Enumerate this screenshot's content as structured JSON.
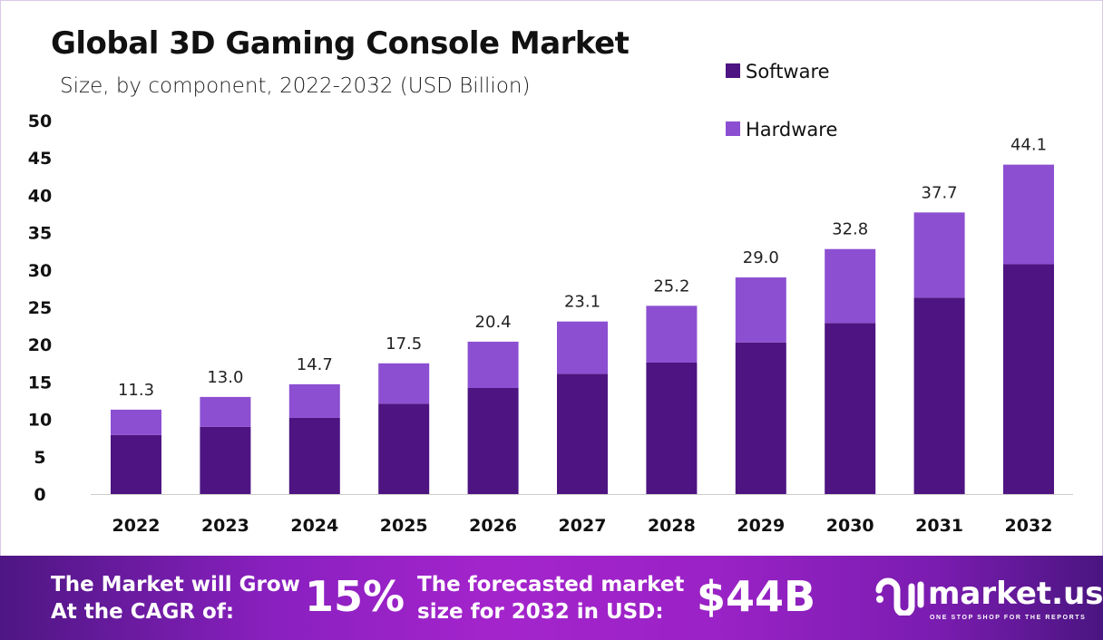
{
  "chart_data": {
    "type": "bar",
    "stacked": true,
    "title": "Global 3D Gaming Console Market",
    "subtitle": "Size, by component, 2022-2032 (USD Billion)",
    "categories": [
      "2022",
      "2023",
      "2024",
      "2025",
      "2026",
      "2027",
      "2028",
      "2029",
      "2030",
      "2031",
      "2032"
    ],
    "series": [
      {
        "name": "Software",
        "color": "#4d1482",
        "values": [
          7.9,
          9.0,
          10.2,
          12.1,
          14.2,
          16.1,
          17.6,
          20.3,
          22.9,
          26.3,
          30.8
        ]
      },
      {
        "name": "Hardware",
        "color": "#8c4fd1",
        "values": [
          3.4,
          4.0,
          4.5,
          5.4,
          6.2,
          7.0,
          7.6,
          8.7,
          9.9,
          11.4,
          13.3
        ]
      }
    ],
    "totals": [
      "11.3",
      "13.0",
      "14.7",
      "17.5",
      "20.4",
      "23.1",
      "25.2",
      "29.0",
      "32.8",
      "37.7",
      "44.1"
    ],
    "ylim": [
      0,
      50
    ],
    "yticks": [
      "0",
      "5",
      "10",
      "15",
      "20",
      "25",
      "30",
      "35",
      "40",
      "45",
      "50"
    ],
    "grid": false,
    "legend_position": "top-right"
  },
  "footer": {
    "cagr_line1": "The Market will Grow",
    "cagr_line2": "At the CAGR of:",
    "cagr_value": "15%",
    "forecast_line1": "The forecasted market",
    "forecast_line2": "size for 2032 in USD:",
    "forecast_value": "$44B",
    "logo_name": "market.us",
    "logo_tagline": "ONE STOP SHOP FOR THE REPORTS"
  }
}
